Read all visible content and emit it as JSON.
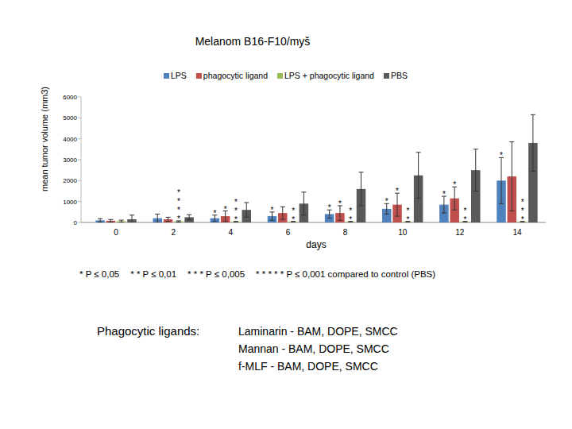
{
  "chart_data": {
    "type": "bar",
    "title": "Melanom B16-F10/myš",
    "x_label": "days",
    "y_label": "mean tumor volume (mm3)",
    "categories": [
      "0",
      "2",
      "4",
      "6",
      "8",
      "10",
      "12",
      "14"
    ],
    "series": [
      {
        "name": "LPS",
        "color": "#4f81bd",
        "values": [
          100,
          200,
          200,
          300,
          400,
          650,
          850,
          2000
        ],
        "errors": [
          80,
          200,
          150,
          200,
          200,
          250,
          400,
          1100
        ]
      },
      {
        "name": "phagocytic ligand",
        "color": "#c0504d",
        "values": [
          80,
          150,
          300,
          450,
          450,
          850,
          1150,
          2200
        ],
        "errors": [
          60,
          100,
          250,
          300,
          350,
          550,
          550,
          1650
        ]
      },
      {
        "name": "LPS + phagocytic ligand",
        "color": "#9bbb59",
        "values": [
          60,
          50,
          30,
          30,
          30,
          30,
          30,
          30
        ],
        "errors": [
          50,
          30,
          20,
          20,
          20,
          20,
          20,
          20
        ]
      },
      {
        "name": "PBS",
        "color": "#595959",
        "values": [
          150,
          250,
          600,
          900,
          1600,
          2250,
          2500,
          3800
        ],
        "errors": [
          200,
          120,
          350,
          550,
          800,
          1100,
          1000,
          1350
        ]
      }
    ],
    "ylim": [
      0,
      6000
    ],
    "yticks": [
      0,
      1000,
      2000,
      3000,
      4000,
      5000,
      6000
    ],
    "grid": false,
    "legend": "top",
    "annotations": [
      {
        "day": "2",
        "series": "LPS + phagocytic ligand",
        "text": "****"
      },
      {
        "day": "4",
        "series": "LPS",
        "text": "*"
      },
      {
        "day": "4",
        "series": "phagocytic ligand",
        "text": "*"
      },
      {
        "day": "4",
        "series": "LPS + phagocytic ligand",
        "text": "***"
      },
      {
        "day": "6",
        "series": "LPS",
        "text": "*"
      },
      {
        "day": "6",
        "series": "LPS + phagocytic ligand",
        "text": "**"
      },
      {
        "day": "8",
        "series": "LPS",
        "text": "*"
      },
      {
        "day": "8",
        "series": "phagocytic ligand",
        "text": "*"
      },
      {
        "day": "8",
        "series": "LPS + phagocytic ligand",
        "text": "**"
      },
      {
        "day": "10",
        "series": "LPS",
        "text": "*"
      },
      {
        "day": "10",
        "series": "phagocytic ligand",
        "text": "*"
      },
      {
        "day": "10",
        "series": "LPS + phagocytic ligand",
        "text": "**"
      },
      {
        "day": "12",
        "series": "LPS",
        "text": "*"
      },
      {
        "day": "12",
        "series": "phagocytic ligand",
        "text": "*"
      },
      {
        "day": "12",
        "series": "LPS + phagocytic ligand",
        "text": "**"
      },
      {
        "day": "14",
        "series": "LPS",
        "text": "*"
      },
      {
        "day": "14",
        "series": "LPS + phagocytic ligand",
        "text": "***"
      }
    ],
    "footnotes": [
      "* P ≤ 0,05",
      "* * P ≤ 0,01",
      "* * * P ≤ 0,005",
      "* * * * * P ≤ 0,001  compared to control (PBS)"
    ],
    "ligand_title": "Phagocytic ligands:",
    "ligands": [
      "Laminarin - BAM, DOPE, SMCC",
      "Mannan - BAM, DOPE, SMCC",
      "f-MLF - BAM, DOPE, SMCC"
    ]
  }
}
